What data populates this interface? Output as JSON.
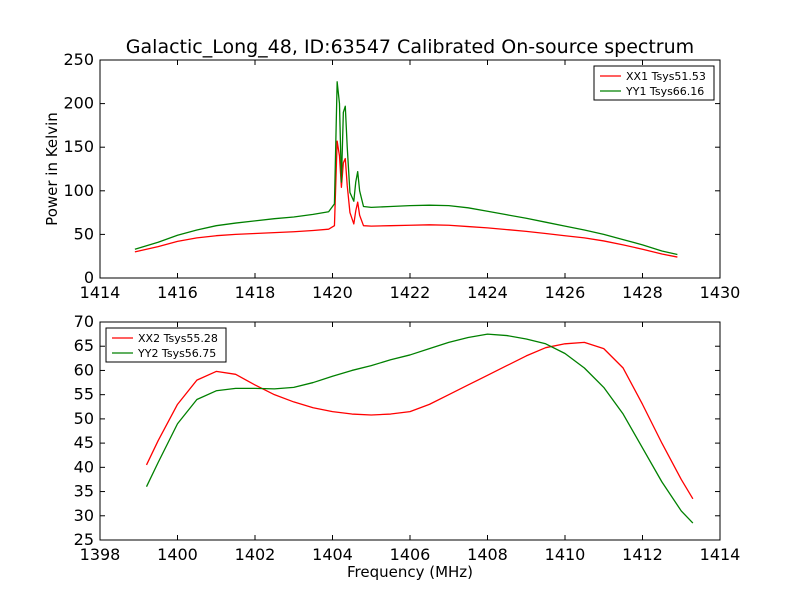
{
  "title": "Galactic_Long_48, ID:63547 Calibrated On-source spectrum",
  "chart_data": [
    {
      "type": "line",
      "ylabel": "Power in Kelvin",
      "xlabel": "",
      "xlim": [
        1414,
        1430
      ],
      "ylim": [
        0,
        250
      ],
      "xticks": [
        1414,
        1416,
        1418,
        1420,
        1422,
        1424,
        1426,
        1428,
        1430
      ],
      "yticks": [
        0,
        50,
        100,
        150,
        200,
        250
      ],
      "legend_position": "top-right",
      "grid": false,
      "series": [
        {
          "name": "XX1 Tsys51.53",
          "color": "#ff0000",
          "x": [
            1414.9,
            1415.5,
            1416.0,
            1416.5,
            1417.0,
            1417.5,
            1418.0,
            1418.5,
            1419.0,
            1419.5,
            1419.9,
            1420.05,
            1420.12,
            1420.18,
            1420.23,
            1420.28,
            1420.33,
            1420.38,
            1420.45,
            1420.55,
            1420.6,
            1420.65,
            1420.7,
            1420.8,
            1421.0,
            1421.5,
            1422.0,
            1422.5,
            1423.0,
            1423.5,
            1424.0,
            1424.5,
            1425.0,
            1425.5,
            1426.0,
            1426.5,
            1427.0,
            1427.5,
            1428.0,
            1428.5,
            1428.9
          ],
          "y": [
            30,
            36,
            42,
            46,
            48.5,
            50,
            51,
            52,
            53,
            54.5,
            56,
            60,
            157,
            140,
            104,
            132,
            137,
            106,
            75,
            62,
            77,
            87,
            72,
            60,
            59.5,
            60,
            60.5,
            61,
            60.5,
            59,
            57.5,
            55.5,
            53.5,
            51,
            48.5,
            46,
            42.5,
            38,
            33,
            27.5,
            24
          ]
        },
        {
          "name": "YY1 Tsys66.16",
          "color": "#008000",
          "x": [
            1414.9,
            1415.5,
            1416.0,
            1416.5,
            1417.0,
            1417.5,
            1418.0,
            1418.5,
            1419.0,
            1419.5,
            1419.9,
            1420.05,
            1420.12,
            1420.18,
            1420.23,
            1420.28,
            1420.33,
            1420.38,
            1420.45,
            1420.55,
            1420.6,
            1420.65,
            1420.7,
            1420.8,
            1421.0,
            1421.5,
            1422.0,
            1422.5,
            1423.0,
            1423.5,
            1424.0,
            1424.5,
            1425.0,
            1425.5,
            1426.0,
            1426.5,
            1427.0,
            1427.5,
            1428.0,
            1428.5,
            1428.9
          ],
          "y": [
            33,
            41,
            49,
            55,
            60,
            63,
            65.5,
            68,
            70,
            73,
            76,
            85,
            225,
            200,
            110,
            190,
            197,
            150,
            98,
            88,
            110,
            122,
            100,
            82,
            81,
            82,
            83,
            83.5,
            83,
            80.5,
            76.5,
            72.5,
            68.5,
            64,
            59.5,
            55,
            50,
            44,
            38,
            31,
            27
          ]
        }
      ]
    },
    {
      "type": "line",
      "xlabel": "Frequency (MHz)",
      "ylabel": "",
      "xlim": [
        1398,
        1414
      ],
      "ylim": [
        25,
        70
      ],
      "xticks": [
        1398,
        1400,
        1402,
        1404,
        1406,
        1408,
        1410,
        1412,
        1414
      ],
      "yticks": [
        25,
        30,
        35,
        40,
        45,
        50,
        55,
        60,
        65,
        70
      ],
      "legend_position": "top-left",
      "grid": false,
      "series": [
        {
          "name": "XX2 Tsys55.28",
          "color": "#ff0000",
          "x": [
            1399.2,
            1399.5,
            1400.0,
            1400.5,
            1401.0,
            1401.5,
            1402.0,
            1402.5,
            1403.0,
            1403.5,
            1404.0,
            1404.5,
            1405.0,
            1405.5,
            1406.0,
            1406.5,
            1407.0,
            1407.5,
            1408.0,
            1408.5,
            1409.0,
            1409.5,
            1410.0,
            1410.5,
            1411.0,
            1411.5,
            1412.0,
            1412.5,
            1413.0,
            1413.3
          ],
          "y": [
            40.5,
            45.5,
            53,
            58,
            59.8,
            59.2,
            57,
            55,
            53.5,
            52.3,
            51.5,
            51,
            50.8,
            51,
            51.5,
            53,
            55,
            57,
            59,
            61,
            63,
            64.7,
            65.5,
            65.8,
            64.5,
            60.5,
            53,
            45,
            37.5,
            33.5
          ]
        },
        {
          "name": "YY2 Tsys56.75",
          "color": "#008000",
          "x": [
            1399.2,
            1399.5,
            1400.0,
            1400.5,
            1401.0,
            1401.5,
            1402.0,
            1402.5,
            1403.0,
            1403.5,
            1404.0,
            1404.5,
            1405.0,
            1405.5,
            1406.0,
            1406.5,
            1407.0,
            1407.5,
            1408.0,
            1408.5,
            1409.0,
            1409.5,
            1410.0,
            1410.5,
            1411.0,
            1411.5,
            1412.0,
            1412.5,
            1413.0,
            1413.3
          ],
          "y": [
            36,
            41,
            49,
            54,
            55.8,
            56.3,
            56.3,
            56.2,
            56.5,
            57.5,
            58.8,
            60,
            61,
            62.2,
            63.2,
            64.5,
            65.8,
            66.8,
            67.5,
            67.2,
            66.5,
            65.5,
            63.5,
            60.5,
            56.5,
            51,
            44,
            37,
            31,
            28.5
          ]
        }
      ]
    }
  ]
}
